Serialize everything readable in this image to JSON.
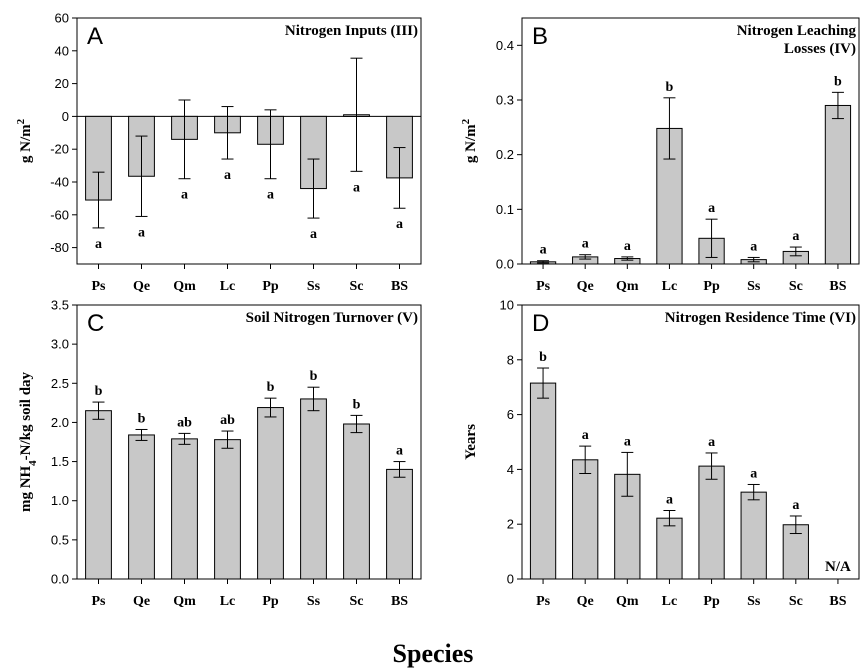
{
  "figure": {
    "xlabel": "Species"
  },
  "chart_data": [
    {
      "type": "bar",
      "letter": "A",
      "title_lines": [
        "Nitrogen Inputs (III)"
      ],
      "ylabel": "g N/m",
      "ylabel_sup": "2",
      "ylim": [
        -90,
        60
      ],
      "yticks": [
        -80,
        -60,
        -40,
        -20,
        0,
        20,
        40,
        60
      ],
      "zero_line": true,
      "categories": [
        "Ps",
        "Qe",
        "Qm",
        "Lc",
        "Pp",
        "Ss",
        "Sc",
        "BS"
      ],
      "values": [
        -51,
        -36.5,
        -14,
        -10,
        -17,
        -44,
        1,
        -37.5
      ],
      "error": [
        17,
        24.5,
        24,
        16,
        21,
        18,
        34.5,
        18.5
      ],
      "letters": [
        "a",
        "a",
        "a",
        "a",
        "a",
        "a",
        "a",
        "a"
      ],
      "letter_pos": [
        "below",
        "below",
        "below",
        "below",
        "below",
        "below",
        "below",
        "below"
      ]
    },
    {
      "type": "bar",
      "letter": "B",
      "title_lines": [
        "Nitrogen Leaching",
        "Losses (IV)"
      ],
      "ylabel": "g N/m",
      "ylabel_sup": "2",
      "ylim": [
        0,
        0.45
      ],
      "yticks": [
        0.0,
        0.1,
        0.2,
        0.3,
        0.4
      ],
      "tick_decimals": 1,
      "categories": [
        "Ps",
        "Qe",
        "Qm",
        "Lc",
        "Pp",
        "Ss",
        "Sc",
        "BS"
      ],
      "values": [
        0.004,
        0.013,
        0.01,
        0.248,
        0.047,
        0.008,
        0.023,
        0.29
      ],
      "error": [
        0.002,
        0.004,
        0.003,
        0.056,
        0.035,
        0.004,
        0.008,
        0.024
      ],
      "letters": [
        "a",
        "a",
        "a",
        "b",
        "a",
        "a",
        "a",
        "b"
      ],
      "letter_pos": [
        "above",
        "above",
        "above",
        "above",
        "above",
        "above",
        "above",
        "above"
      ]
    },
    {
      "type": "bar",
      "letter": "C",
      "title_lines": [
        "Soil Nitrogen Turnover (V)"
      ],
      "ylabel_parts": [
        "mg NH",
        "4",
        "-N/kg soil day"
      ],
      "ylim": [
        0,
        3.5
      ],
      "yticks": [
        0.0,
        0.5,
        1.0,
        1.5,
        2.0,
        2.5,
        3.0,
        3.5
      ],
      "tick_decimals": 1,
      "categories": [
        "Ps",
        "Qe",
        "Qm",
        "Lc",
        "Pp",
        "Ss",
        "Sc",
        "BS"
      ],
      "values": [
        2.15,
        1.84,
        1.79,
        1.78,
        2.19,
        2.3,
        1.98,
        1.4
      ],
      "error": [
        0.11,
        0.07,
        0.07,
        0.11,
        0.12,
        0.15,
        0.11,
        0.1
      ],
      "letters": [
        "b",
        "b",
        "ab",
        "ab",
        "b",
        "b",
        "b",
        "a"
      ],
      "letter_pos": [
        "above",
        "above",
        "above",
        "above",
        "above",
        "above",
        "above",
        "above"
      ]
    },
    {
      "type": "bar",
      "letter": "D",
      "title_lines": [
        "Nitrogen Residence Time (VI)"
      ],
      "ylabel": "Years",
      "ylim": [
        0,
        10
      ],
      "yticks": [
        0,
        2,
        4,
        6,
        8,
        10
      ],
      "tick_decimals": 0,
      "categories": [
        "Ps",
        "Qe",
        "Qm",
        "Lc",
        "Pp",
        "Ss",
        "Sc",
        "BS"
      ],
      "values": [
        7.15,
        4.35,
        3.82,
        2.22,
        4.12,
        3.17,
        1.98,
        null
      ],
      "error": [
        0.55,
        0.5,
        0.8,
        0.28,
        0.48,
        0.28,
        0.32,
        null
      ],
      "letters": [
        "b",
        "a",
        "a",
        "a",
        "a",
        "a",
        "a",
        ""
      ],
      "letter_pos": [
        "above",
        "above",
        "above",
        "above",
        "above",
        "above",
        "above",
        "above"
      ],
      "missing_label": "N/A"
    }
  ],
  "colors": {
    "bar_fill": "#c8c8c8",
    "bar_stroke": "#000000",
    "axis": "#000000"
  }
}
